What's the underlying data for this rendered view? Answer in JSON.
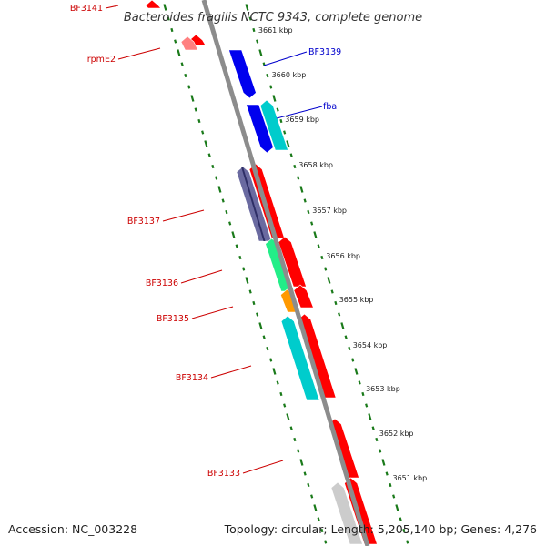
{
  "title": "Bacteroides fragilis NCTC 9343, complete genome",
  "footer": {
    "accession": "Accession: NC_003228",
    "summary": "Topology: circular; Length: 5,205,140 bp; Genes: 4,276"
  },
  "colors": {
    "backbone": "#8c8c8c",
    "ticks": "#1a7a1a",
    "label_red": "#cc0000",
    "label_blue": "#0000cc"
  },
  "scale_labels": [
    "3661 kbp",
    "3660 kbp",
    "3659 kbp",
    "3658 kbp",
    "3657 kbp",
    "3656 kbp",
    "3655 kbp",
    "3654 kbp",
    "3653 kbp",
    "3652 kbp",
    "3651 kbp"
  ],
  "gene_labels": [
    {
      "text": "BF3141",
      "color": "#cc0000"
    },
    {
      "text": "rpmE2",
      "color": "#cc0000"
    },
    {
      "text": "BF3139",
      "color": "#0000cc"
    },
    {
      "text": "fba",
      "color": "#0000cc"
    },
    {
      "text": "BF3137",
      "color": "#cc0000"
    },
    {
      "text": "BF3136",
      "color": "#cc0000"
    },
    {
      "text": "BF3135",
      "color": "#cc0000"
    },
    {
      "text": "BF3134",
      "color": "#cc0000"
    },
    {
      "text": "BF3133",
      "color": "#cc0000"
    }
  ],
  "features": [
    {
      "name": "BF3141",
      "color": "#ff0000"
    },
    {
      "name": "rpmE2",
      "color": "#ff0000"
    },
    {
      "name": "rpmE2",
      "color": "#ff8080"
    },
    {
      "name": "BF3139",
      "color": "#0000ee"
    },
    {
      "name": "fba",
      "color": "#0000ee"
    },
    {
      "name": "fba",
      "color": "#00cccc"
    },
    {
      "name": "BF3137",
      "color": "#ff0000"
    },
    {
      "name": "BF3137",
      "color": "#6a6aa0"
    },
    {
      "name": "BF3136",
      "color": "#ff0000"
    },
    {
      "name": "BF3136",
      "color": "#22ee88"
    },
    {
      "name": "BF3135",
      "color": "#ff0000"
    },
    {
      "name": "BF3135",
      "color": "#ff9900"
    },
    {
      "name": "BF3134",
      "color": "#ff0000"
    },
    {
      "name": "BF3134",
      "color": "#00cccc"
    },
    {
      "name": "BF3133",
      "color": "#ff0000"
    },
    {
      "name": "BF3133",
      "color": "#cccccc"
    }
  ]
}
